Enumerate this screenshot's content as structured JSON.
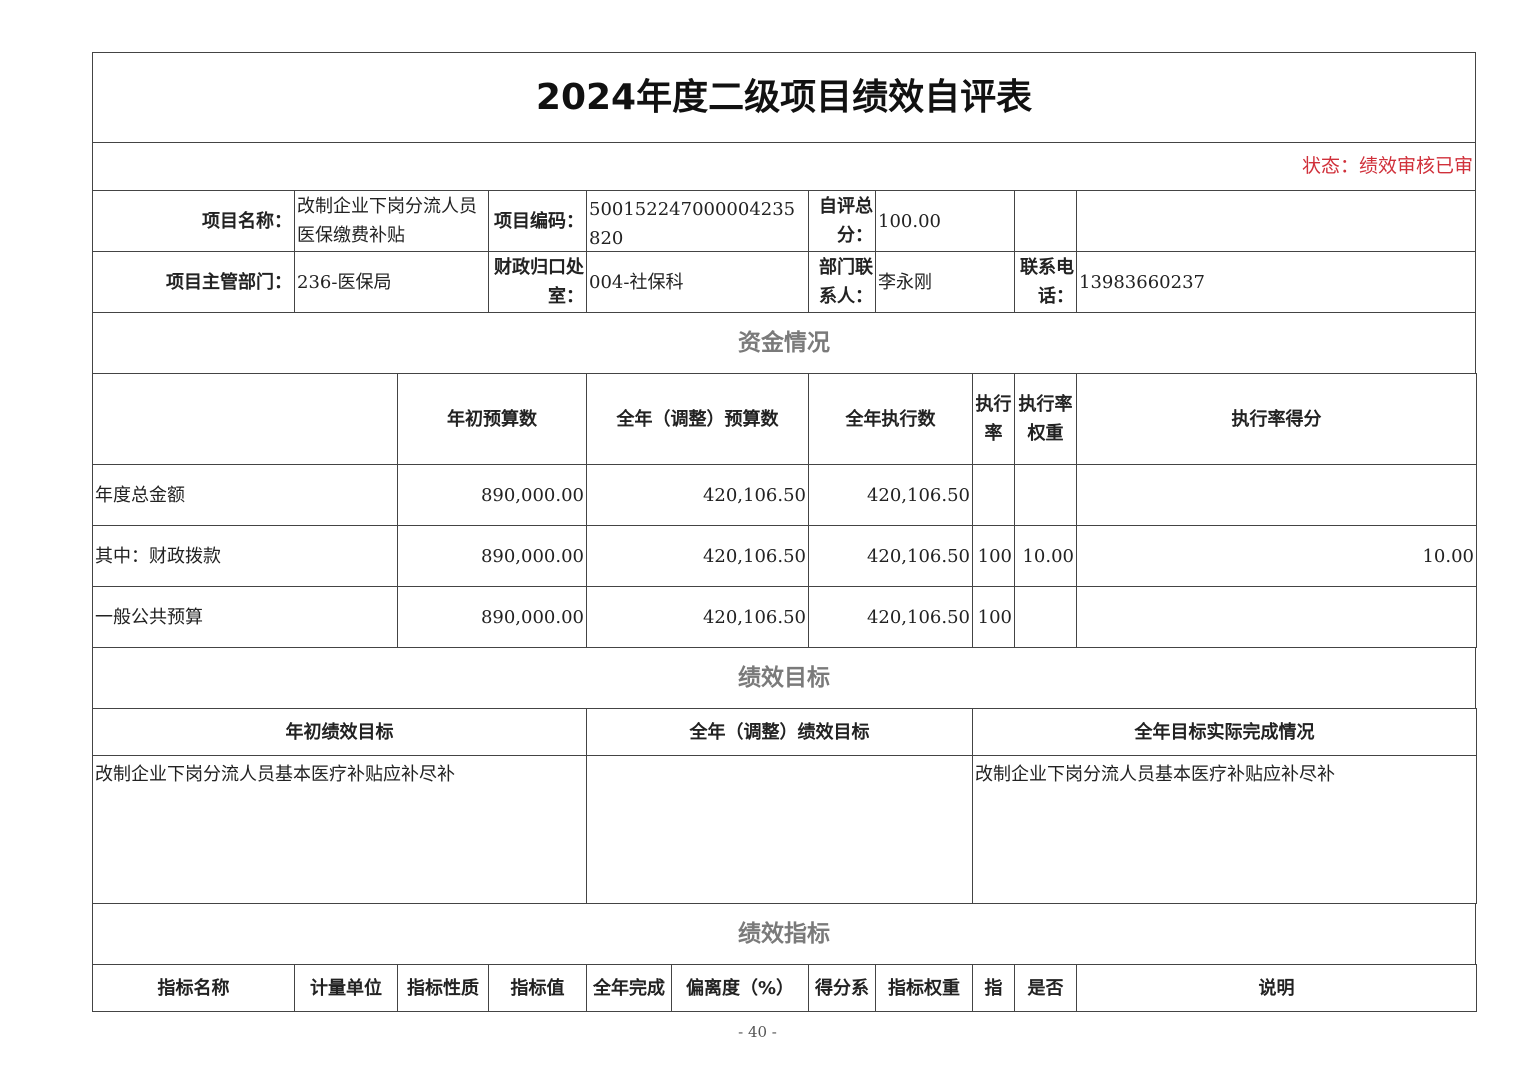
{
  "title": "2024年度二级项目绩效自评表",
  "status": "状态：绩效审核已审",
  "project": {
    "name_label": "项目名称：",
    "name": "改制企业下岗分流人员医保缴费补贴",
    "code_label": "项目编码：",
    "code": "500152247000004235820",
    "score_label": "自评总分：",
    "score": "100.00",
    "dept_label": "项目主管部门：",
    "dept": "236-医保局",
    "office_label": "财政归口处室：",
    "office": "004-社保科",
    "contact_label": "部门联系人：",
    "contact": "李永刚",
    "phone_label": "联系电话：",
    "phone": "13983660237"
  },
  "funds": {
    "section_title": "资金情况",
    "headers": [
      "",
      "年初预算数",
      "全年（调整）预算数",
      "全年执行数",
      "执行率",
      "执行率权重",
      "执行率得分"
    ],
    "rows": [
      [
        "年度总金额",
        "890,000.00",
        "420,106.50",
        "420,106.50",
        "",
        "",
        ""
      ],
      [
        "其中：财政拨款",
        "890,000.00",
        "420,106.50",
        "420,106.50",
        "100",
        "10.00",
        "10.00"
      ],
      [
        "一般公共预算",
        "890,000.00",
        "420,106.50",
        "420,106.50",
        "100",
        "",
        ""
      ]
    ]
  },
  "goals": {
    "section_title": "绩效目标",
    "headers": [
      "年初绩效目标",
      "全年（调整）绩效目标",
      "全年目标实际完成情况"
    ],
    "values": [
      "改制企业下岗分流人员基本医疗补贴应补尽补",
      "",
      "改制企业下岗分流人员基本医疗补贴应补尽补"
    ]
  },
  "indicators": {
    "section_title": "绩效指标",
    "headers": [
      "指标名称",
      "计量单位",
      "指标性质",
      "指标值",
      "全年完成",
      "偏离度（%）",
      "得分系",
      "指标权重",
      "指",
      "是否",
      "说明"
    ]
  },
  "page_number": "- 40 -"
}
